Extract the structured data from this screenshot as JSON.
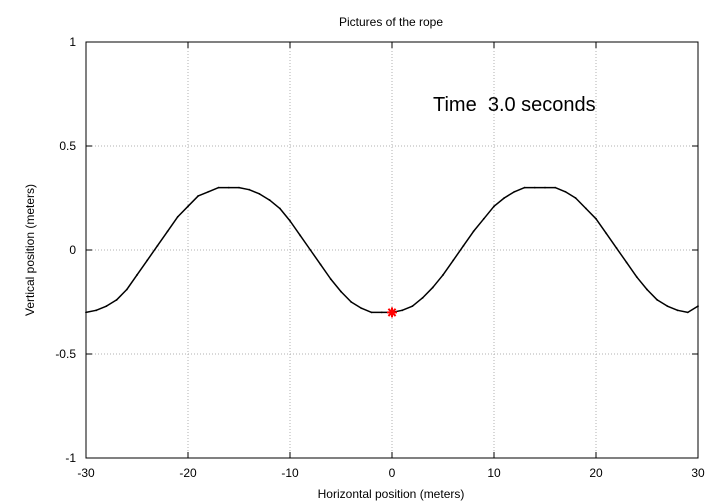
{
  "chart_data": {
    "type": "line",
    "title": "Pictures of the rope",
    "xlabel": "Horizontal position (meters)",
    "ylabel": "Vertical position (meters)",
    "xlim": [
      -30,
      30
    ],
    "ylim": [
      -1,
      1
    ],
    "xticks": [
      -30,
      -20,
      -10,
      0,
      10,
      20,
      30
    ],
    "yticks": [
      -1,
      -0.5,
      0,
      0.5,
      1
    ],
    "xtick_labels": [
      "-30",
      "-20",
      "-10",
      "0",
      "10",
      "20",
      "30"
    ],
    "ytick_labels": [
      "-1",
      "-0.5",
      "0",
      "0.5",
      "1"
    ],
    "grid": true,
    "annotation": "Time  3.0 seconds",
    "series": [
      {
        "color": "#000000",
        "x": [
          -30,
          -29,
          -28,
          -27,
          -26,
          -25,
          -24,
          -23,
          -22,
          -21,
          -20,
          -19,
          -18,
          -17,
          -16,
          -15,
          -14,
          -13,
          -12,
          -11,
          -10,
          -9,
          -8,
          -7,
          -6,
          -5,
          -4,
          -3,
          -2,
          -1,
          0,
          1,
          2,
          3,
          4,
          5,
          6,
          7,
          8,
          9,
          10,
          11,
          12,
          13,
          14,
          15,
          16,
          17,
          18,
          19,
          20,
          21,
          22,
          23,
          24,
          25,
          26,
          27,
          28,
          29,
          30
        ],
        "y": [
          -0.3,
          -0.29,
          -0.27,
          -0.24,
          -0.19,
          -0.12,
          -0.05,
          0.02,
          0.09,
          0.16,
          0.21,
          0.26,
          0.28,
          0.3,
          0.3,
          0.3,
          0.29,
          0.27,
          0.24,
          0.2,
          0.14,
          0.07,
          0.0,
          -0.07,
          -0.14,
          -0.2,
          -0.25,
          -0.28,
          -0.3,
          -0.3,
          -0.3,
          -0.29,
          -0.27,
          -0.23,
          -0.18,
          -0.12,
          -0.05,
          0.02,
          0.09,
          0.15,
          0.21,
          0.25,
          0.28,
          0.3,
          0.3,
          0.3,
          0.3,
          0.28,
          0.25,
          0.2,
          0.15,
          0.08,
          0.01,
          -0.06,
          -0.13,
          -0.19,
          -0.24,
          -0.27,
          -0.29,
          -0.3,
          -0.27
        ]
      }
    ],
    "marker": {
      "x": 0,
      "y": -0.3,
      "color": "#ff0000",
      "shape": "star"
    }
  }
}
